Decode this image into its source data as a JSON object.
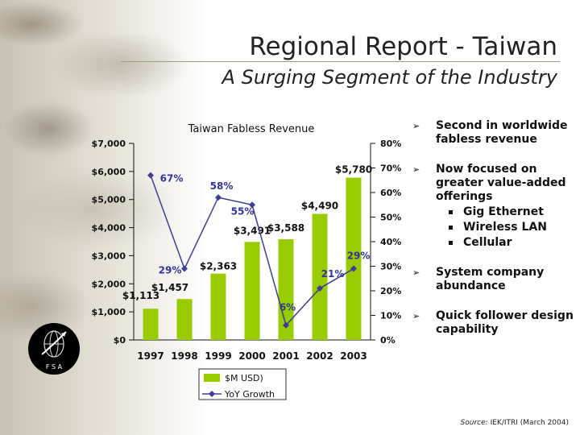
{
  "slide": {
    "title": "Regional Report - Taiwan",
    "subtitle": "A Surging Segment of the Industry",
    "logo_text": "F S A",
    "source_label": "Source:",
    "source_text": "IEK/ITRI (March 2004)"
  },
  "bullets": [
    {
      "text": "Second in worldwide fabless revenue",
      "subs": []
    },
    {
      "text": "Now focused on greater value-added offerings",
      "subs": [
        "Gig Ethernet",
        "Wireless LAN",
        "Cellular"
      ]
    },
    {
      "text": "System company abundance",
      "subs": []
    },
    {
      "text": "Quick follower design capability",
      "subs": []
    }
  ],
  "colors": {
    "bar": "#99cc00",
    "line": "#3d3d99",
    "percent_label": "#333399",
    "text": "#111111"
  },
  "chart_data": {
    "type": "bar",
    "title": "Taiwan Fabless Revenue",
    "categories": [
      "1997",
      "1998",
      "1999",
      "2000",
      "2001",
      "2002",
      "2003"
    ],
    "series": [
      {
        "name": "$M USD)",
        "type": "bar",
        "axis": "left",
        "values": [
          1113,
          1457,
          2363,
          3491,
          3588,
          4490,
          5780
        ],
        "labels": [
          "$1,113",
          "$1,457",
          "$2,363",
          "$3,491",
          "$3,588",
          "$4,490",
          "$5,780"
        ]
      },
      {
        "name": "YoY Growth",
        "type": "line",
        "axis": "right",
        "values": [
          67,
          29,
          58,
          55,
          6,
          21,
          29
        ],
        "labels": [
          "67%",
          "29%",
          "58%",
          "55%",
          "6%",
          "21%",
          "29%"
        ]
      }
    ],
    "left_axis": {
      "min": 0,
      "max": 7000,
      "ticks": [
        0,
        1000,
        2000,
        3000,
        4000,
        5000,
        6000,
        7000
      ],
      "tick_labels": [
        "$0",
        "$1,000",
        "$2,000",
        "$3,000",
        "$4,000",
        "$5,000",
        "$6,000",
        "$7,000"
      ]
    },
    "right_axis": {
      "min": 0,
      "max": 80,
      "ticks": [
        0,
        10,
        20,
        30,
        40,
        50,
        60,
        70,
        80
      ],
      "tick_labels": [
        "0%",
        "10%",
        "20%",
        "30%",
        "40%",
        "50%",
        "60%",
        "70%",
        "80%"
      ]
    },
    "legend": {
      "position": "bottom",
      "entries": [
        "$M USD)",
        "YoY Growth"
      ]
    },
    "grid": false
  }
}
